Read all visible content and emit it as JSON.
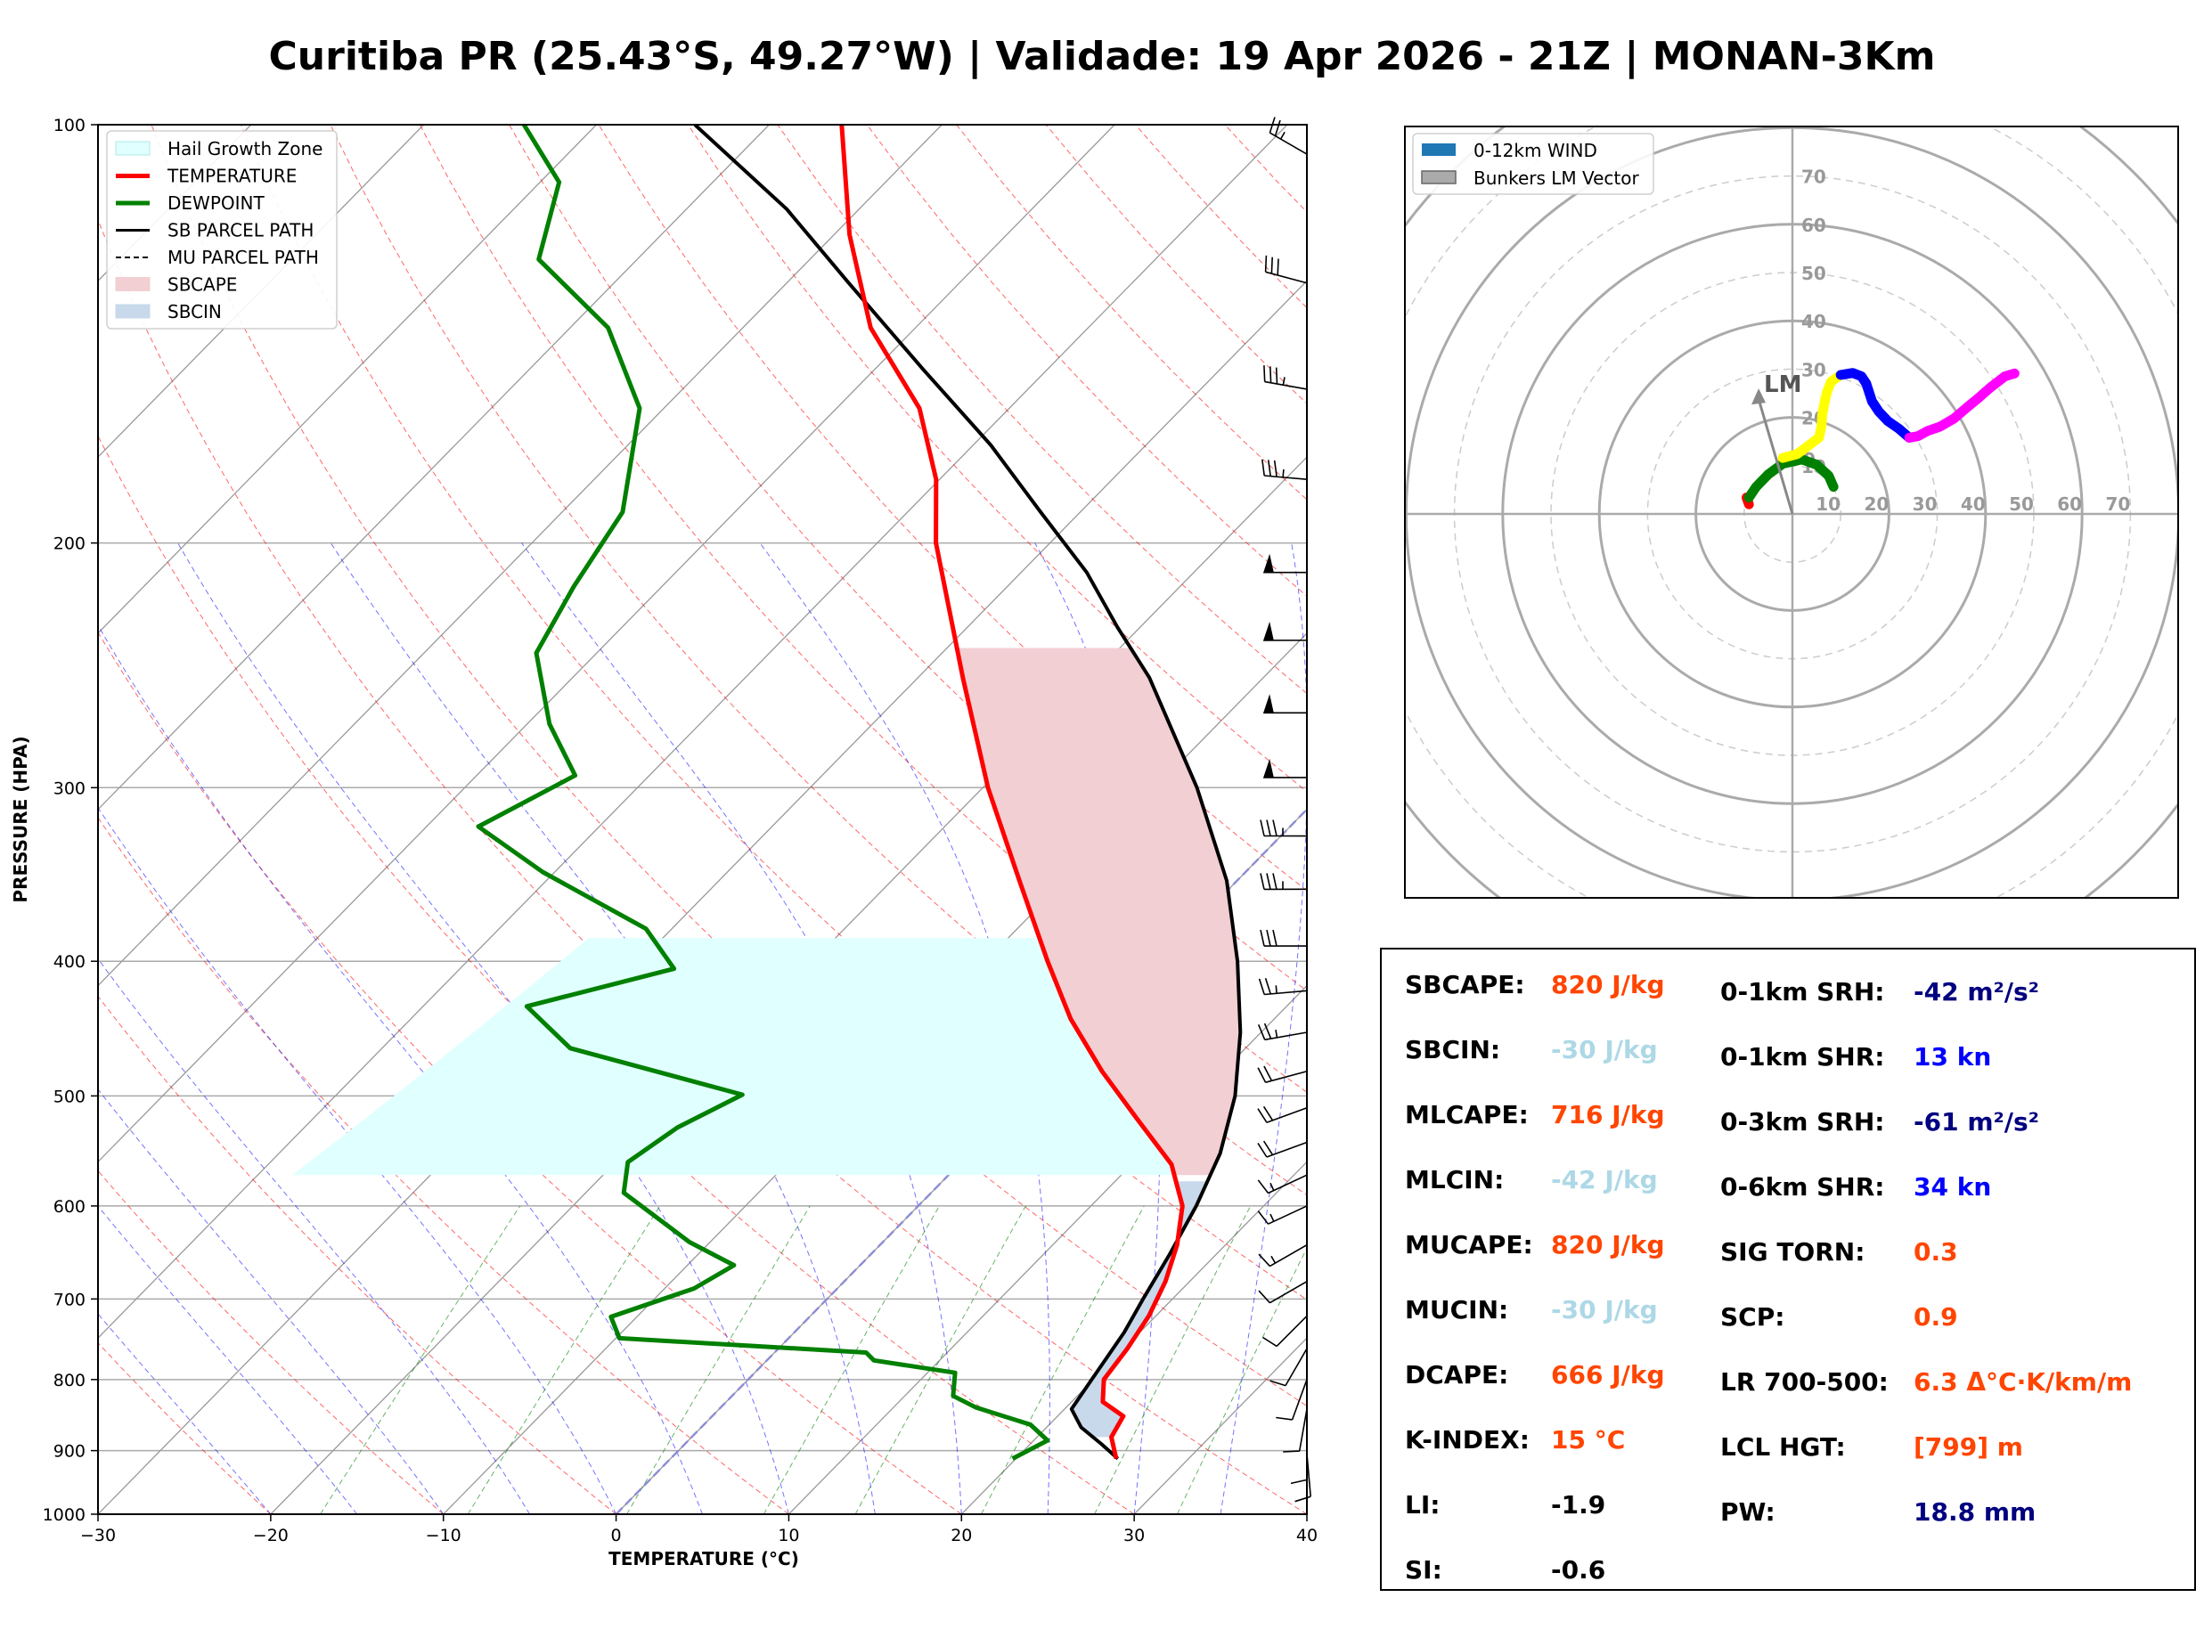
{
  "title": "Curitiba PR (25.43°S, 49.27°W) | Validade: 19 Apr 2026 - 21Z | MONAN-3Km",
  "colors": {
    "temperature": "#ff0000",
    "dewpoint": "#008000",
    "parcel": "#000000",
    "sbcape": "#f2cfd3",
    "sbcin": "#c7d9ea",
    "hail": "#e0ffff",
    "isotherm": "#888888",
    "dry_adiabat": "#ff0000",
    "moist_adiabat": "#0000ff",
    "mixing_ratio": "#008000"
  },
  "chart_data": [
    {
      "type": "line",
      "name": "skew-t",
      "xlabel": "TEMPERATURE (°C)",
      "ylabel": "PRESSURE (HPA)",
      "xlim": [
        -30,
        40
      ],
      "ylim": [
        1000,
        100
      ],
      "xticks": [
        "−30",
        "−20",
        "−10",
        "0",
        "10",
        "20",
        "30",
        "40"
      ],
      "yticks": [
        "100",
        "200",
        "300",
        "400",
        "500",
        "600",
        "700",
        "800",
        "900",
        "1000"
      ],
      "legend": [
        "Hail Growth Zone",
        "TEMPERATURE",
        "DEWPOINT",
        "SB PARCEL PATH",
        "MU PARCEL PATH",
        "SBCAPE",
        "SBCIN"
      ],
      "legend_position": "top-left",
      "hail_growth_zone": {
        "top_hpa": 385,
        "bottom_hpa": 570
      },
      "series": [
        {
          "name": "TEMPERATURE",
          "points": [
            [
              1000,
              null
            ],
            [
              912,
              25.8
            ],
            [
              880,
              24.3
            ],
            [
              850,
              23.8
            ],
            [
              830,
              21.8
            ],
            [
              800,
              20.6
            ],
            [
              760,
              20.2
            ],
            [
              720,
              19.6
            ],
            [
              680,
              18.6
            ],
            [
              640,
              17.2
            ],
            [
              600,
              15.3
            ],
            [
              560,
              12.3
            ],
            [
              520,
              7.8
            ],
            [
              480,
              3.0
            ],
            [
              440,
              -1.8
            ],
            [
              400,
              -6.4
            ],
            [
              350,
              -12.6
            ],
            [
              300,
              -19.7
            ],
            [
              250,
              -27.4
            ],
            [
              200,
              -36.6
            ],
            [
              180,
              -40.2
            ],
            [
              160,
              -45.2
            ],
            [
              140,
              -52.6
            ],
            [
              120,
              -59.1
            ],
            [
              100,
              -65.8
            ]
          ]
        },
        {
          "name": "DEWPOINT",
          "points": [
            [
              912,
              19.8
            ],
            [
              885,
              20.8
            ],
            [
              862,
              18.9
            ],
            [
              838,
              14.8
            ],
            [
              822,
              12.8
            ],
            [
              791,
              11.6
            ],
            [
              775,
              6.2
            ],
            [
              765,
              5.3
            ],
            [
              747,
              -9.8
            ],
            [
              721,
              -11.5
            ],
            [
              688,
              -8.3
            ],
            [
              662,
              -7.3
            ],
            [
              637,
              -11.2
            ],
            [
              587,
              -17.8
            ],
            [
              558,
              -19.3
            ],
            [
              527,
              -18.4
            ],
            [
              499,
              -16.5
            ],
            [
              462,
              -29.1
            ],
            [
              431,
              -34.0
            ],
            [
              405,
              -27.6
            ],
            [
              379,
              -31.5
            ],
            [
              345,
              -40.7
            ],
            [
              320,
              -47.0
            ],
            [
              294,
              -44.3
            ],
            [
              270,
              -48.7
            ],
            [
              240,
              -53.5
            ],
            [
              215,
              -55.1
            ],
            [
              190,
              -56.5
            ],
            [
              160,
              -61.4
            ],
            [
              140,
              -67.8
            ],
            [
              125,
              -75.7
            ],
            [
              110,
              -78.9
            ],
            [
              100,
              -84.2
            ]
          ]
        },
        {
          "name": "SB PARCEL PATH",
          "points": [
            [
              912,
              25.9
            ],
            [
              890,
              24.1
            ],
            [
              866,
              22.0
            ],
            [
              840,
              20.4
            ],
            [
              800,
              19.9
            ],
            [
              740,
              19.1
            ],
            [
              700,
              18.3
            ],
            [
              650,
              17.3
            ],
            [
              600,
              16.1
            ],
            [
              550,
              14.5
            ],
            [
              500,
              12.1
            ],
            [
              450,
              8.8
            ],
            [
              400,
              4.6
            ],
            [
              350,
              -0.6
            ],
            [
              300,
              -7.6
            ],
            [
              250,
              -16.6
            ],
            [
              230,
              -21.3
            ],
            [
              210,
              -26.2
            ],
            [
              190,
              -32.3
            ],
            [
              170,
              -39.0
            ],
            [
              150,
              -47.2
            ],
            [
              130,
              -56.4
            ],
            [
              115,
              -64.2
            ],
            [
              100,
              -74.3
            ]
          ]
        }
      ],
      "wind_barbs": [
        {
          "p": 105,
          "speed": 25,
          "dir": 300
        },
        {
          "p": 130,
          "speed": 30,
          "dir": 285
        },
        {
          "p": 155,
          "speed": 35,
          "dir": 280
        },
        {
          "p": 180,
          "speed": 35,
          "dir": 275
        },
        {
          "p": 210,
          "speed": 50,
          "dir": 270
        },
        {
          "p": 235,
          "speed": 50,
          "dir": 270
        },
        {
          "p": 265,
          "speed": 50,
          "dir": 270
        },
        {
          "p": 295,
          "speed": 50,
          "dir": 270
        },
        {
          "p": 325,
          "speed": 35,
          "dir": 270
        },
        {
          "p": 355,
          "speed": 35,
          "dir": 270
        },
        {
          "p": 390,
          "speed": 30,
          "dir": 270
        },
        {
          "p": 420,
          "speed": 25,
          "dir": 265
        },
        {
          "p": 450,
          "speed": 25,
          "dir": 260
        },
        {
          "p": 480,
          "speed": 20,
          "dir": 255
        },
        {
          "p": 510,
          "speed": 20,
          "dir": 250
        },
        {
          "p": 540,
          "speed": 20,
          "dir": 250
        },
        {
          "p": 570,
          "speed": 15,
          "dir": 245
        },
        {
          "p": 600,
          "speed": 15,
          "dir": 245
        },
        {
          "p": 640,
          "speed": 15,
          "dir": 240
        },
        {
          "p": 680,
          "speed": 10,
          "dir": 240
        },
        {
          "p": 720,
          "speed": 10,
          "dir": 225
        },
        {
          "p": 760,
          "speed": 10,
          "dir": 210
        },
        {
          "p": 800,
          "speed": 10,
          "dir": 200
        },
        {
          "p": 840,
          "speed": 10,
          "dir": 190
        },
        {
          "p": 880,
          "speed": 10,
          "dir": 180
        },
        {
          "p": 905,
          "speed": 10,
          "dir": 175
        }
      ]
    },
    {
      "type": "line",
      "name": "hodograph",
      "legend": [
        "0-12km WIND",
        "Bunkers LM Vector"
      ],
      "legend_position": "top-left",
      "ring_labels": [
        "10",
        "20",
        "30",
        "40",
        "50",
        "60",
        "70"
      ],
      "lm_label": "LM",
      "bunkers_lm": [
        -7,
        26
      ],
      "series": [
        {
          "name": "0-3km",
          "color": "#ff0000",
          "points": [
            [
              -9,
              2
            ],
            [
              -9.5,
              3.4
            ]
          ]
        },
        {
          "name": "green",
          "color": "#008000",
          "points": [
            [
              -9,
              3.4
            ],
            [
              -7.5,
              5.6
            ],
            [
              -5,
              8.2
            ],
            [
              -2,
              10.4
            ],
            [
              2,
              11.3
            ],
            [
              5,
              10.2
            ],
            [
              7.5,
              7.9
            ],
            [
              8.5,
              5.6
            ]
          ]
        },
        {
          "name": "yellow",
          "color": "#ffff00",
          "points": [
            [
              -2,
              11.6
            ],
            [
              1,
              12.4
            ],
            [
              3.5,
              14.3
            ],
            [
              5.5,
              15.8
            ],
            [
              6,
              18
            ],
            [
              6.2,
              20.7
            ],
            [
              6.7,
              23.3
            ],
            [
              7.1,
              25.1
            ],
            [
              8,
              27.4
            ],
            [
              10,
              28.8
            ]
          ]
        },
        {
          "name": "blue",
          "color": "#0000ff",
          "points": [
            [
              10,
              28.8
            ],
            [
              12.5,
              29.2
            ],
            [
              14.3,
              28.5
            ],
            [
              15.3,
              27
            ],
            [
              16.5,
              23.3
            ],
            [
              17.9,
              21.2
            ],
            [
              19.8,
              19.2
            ],
            [
              22,
              17.7
            ],
            [
              24.2,
              15.8
            ]
          ]
        },
        {
          "name": "magenta",
          "color": "#ff00ff",
          "points": [
            [
              24.2,
              15.8
            ],
            [
              26,
              16.1
            ],
            [
              28,
              17.2
            ],
            [
              30.6,
              18.1
            ],
            [
              33.5,
              19.8
            ],
            [
              36.2,
              22.1
            ],
            [
              38.4,
              23.9
            ],
            [
              40.9,
              26.1
            ],
            [
              44,
              28.5
            ],
            [
              46,
              29.1
            ]
          ]
        }
      ]
    }
  ],
  "indices": {
    "left": [
      {
        "label": "SBCAPE:",
        "value": "820 J/kg",
        "color": "#ff4500"
      },
      {
        "label": "SBCIN:",
        "value": "-30 J/kg",
        "color": "#add8e6"
      },
      {
        "label": "MLCAPE:",
        "value": "716 J/kg",
        "color": "#ff4500"
      },
      {
        "label": "MLCIN:",
        "value": "-42 J/kg",
        "color": "#add8e6"
      },
      {
        "label": "MUCAPE:",
        "value": "820 J/kg",
        "color": "#ff4500"
      },
      {
        "label": "MUCIN:",
        "value": "-30 J/kg",
        "color": "#add8e6"
      },
      {
        "label": "DCAPE:",
        "value": "666 J/kg",
        "color": "#ff4500"
      },
      {
        "label": "K-INDEX:",
        "value": "15 °C",
        "color": "#ff4500"
      },
      {
        "label": "LI:",
        "value": "-1.9",
        "color": "#000000"
      },
      {
        "label": "SI:",
        "value": "-0.6",
        "color": "#000000"
      }
    ],
    "right": [
      {
        "label": "0-1km SRH:",
        "value": "-42 m²/s²",
        "color": "#000080"
      },
      {
        "label": "0-1km SHR:",
        "value": "13 kn",
        "color": "#0000ff"
      },
      {
        "label": "0-3km SRH:",
        "value": "-61 m²/s²",
        "color": "#000080"
      },
      {
        "label": "0-6km SHR:",
        "value": "34 kn",
        "color": "#0000ff"
      },
      {
        "label": "SIG TORN:",
        "value": "0.3",
        "color": "#ff4500"
      },
      {
        "label": "SCP:",
        "value": "0.9",
        "color": "#ff4500"
      },
      {
        "label": "LR 700-500:",
        "value": "6.3 Δ°C·K/km/m",
        "color": "#ff4500"
      },
      {
        "label": "LCL HGT:",
        "value": "[799] m",
        "color": "#ff4500"
      },
      {
        "label": "PW:",
        "value": "18.8 mm",
        "color": "#000080"
      }
    ]
  }
}
